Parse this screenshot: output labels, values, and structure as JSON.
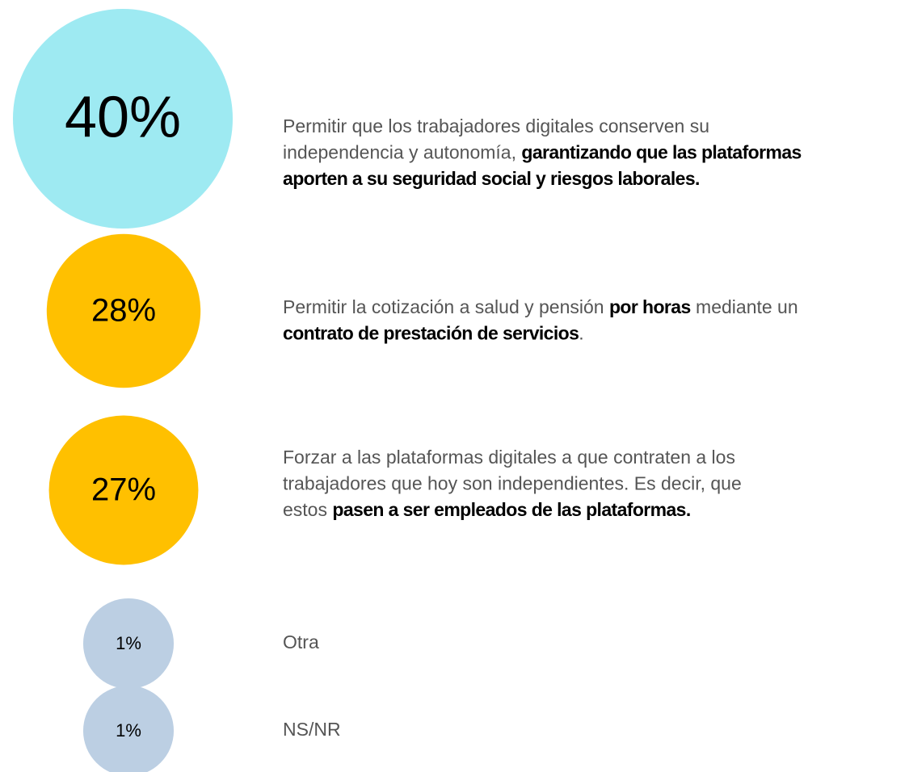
{
  "chart_data": {
    "type": "bubble",
    "values": [
      40,
      28,
      27,
      1,
      1
    ],
    "value_labels": [
      "40%",
      "28%",
      "27%",
      "1%",
      "1%"
    ],
    "colors": [
      "#9eeaf2",
      "#ffc000",
      "#ffc000",
      "#bccfe3",
      "#bccfe3"
    ],
    "categories": [
      [
        [
          {
            "text": "Permitir que los trabajadores digitales conserven su",
            "emphasis": false
          }
        ],
        [
          {
            "text": "independencia y autonomía, ",
            "emphasis": false
          },
          {
            "text": "garantizando que las plataformas",
            "emphasis": true
          }
        ],
        [
          {
            "text": "aporten a su seguridad social y riesgos laborales.",
            "emphasis": true
          }
        ]
      ],
      [
        [
          {
            "text": "Permitir la cotización a salud y pensión ",
            "emphasis": false
          },
          {
            "text": "por horas",
            "emphasis": true
          },
          {
            "text": " mediante un",
            "emphasis": false
          }
        ],
        [
          {
            "text": "contrato de prestación de servicios",
            "emphasis": true
          },
          {
            "text": ".",
            "emphasis": false
          }
        ]
      ],
      [
        [
          {
            "text": "Forzar a las plataformas digitales a que contraten a los",
            "emphasis": false
          }
        ],
        [
          {
            "text": "trabajadores que hoy son independientes. Es decir, que",
            "emphasis": false
          }
        ],
        [
          {
            "text": "estos ",
            "emphasis": false
          },
          {
            "text": "pasen a ser empleados de las plataformas.",
            "emphasis": true
          }
        ]
      ],
      [
        [
          {
            "text": "Otra",
            "emphasis": false
          }
        ]
      ],
      [
        [
          {
            "text": "NS/NR",
            "emphasis": false
          }
        ]
      ]
    ]
  }
}
